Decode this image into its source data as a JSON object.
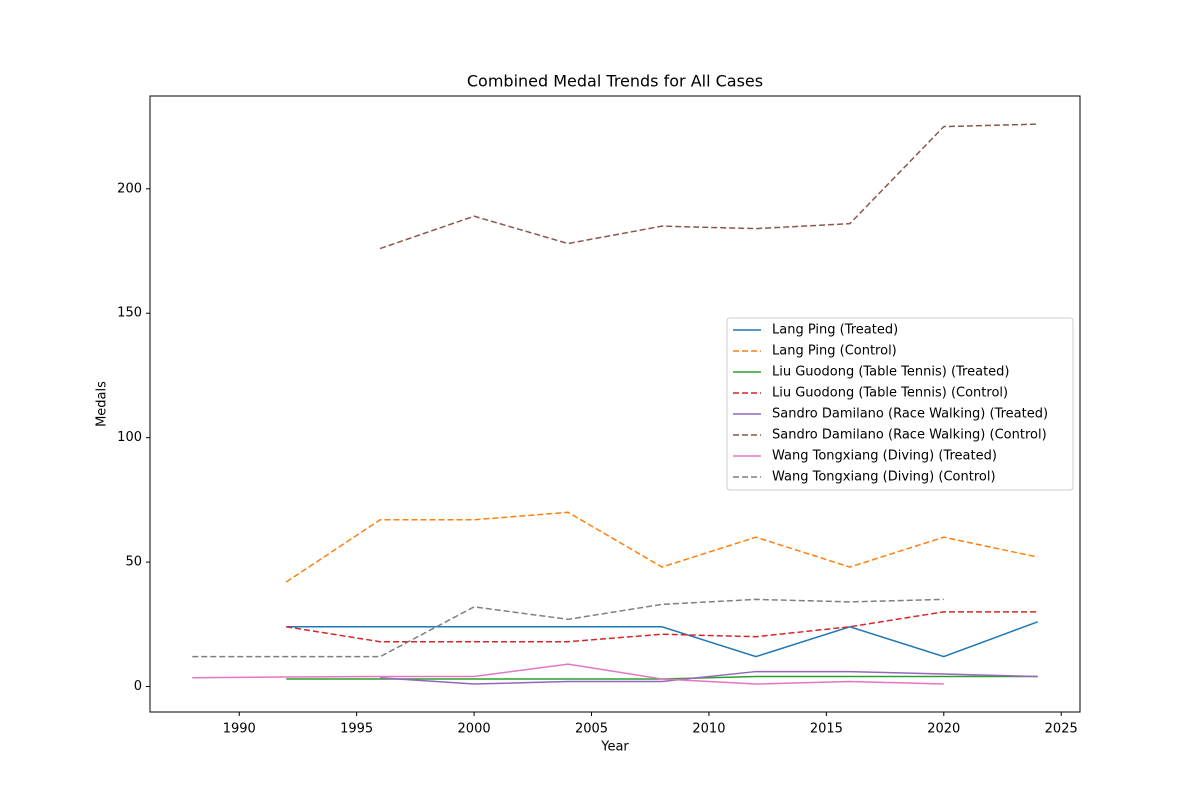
{
  "chart_data": {
    "type": "line",
    "title": "Combined Medal Trends for All Cases",
    "x_label": "Year",
    "y_label": "Medals",
    "x": [
      1988,
      1992,
      1996,
      2000,
      2004,
      2008,
      2012,
      2016,
      2020,
      2024
    ],
    "xlim": [
      1986.2,
      2025.8
    ],
    "xticks": [
      1990,
      1995,
      2000,
      2005,
      2010,
      2015,
      2020,
      2025
    ],
    "ylim": [
      -10.25,
      237.3
    ],
    "yticks": [
      0,
      50,
      100,
      150,
      200
    ],
    "grid": false,
    "legend": "center right",
    "series": [
      {
        "name": "Lang Ping (Treated)",
        "color": "#1f77b4",
        "linestyle": "solid",
        "values": [
          null,
          24,
          24,
          24,
          24,
          24,
          12,
          24,
          12,
          26
        ]
      },
      {
        "name": "Lang Ping (Control)",
        "color": "#ff7f0e",
        "linestyle": "dashed",
        "values": [
          null,
          42,
          67,
          67,
          70,
          48,
          60,
          48,
          60,
          52
        ]
      },
      {
        "name": "Liu Guodong (Table Tennis) (Treated)",
        "color": "#2ca02c",
        "linestyle": "solid",
        "values": [
          null,
          3,
          3,
          3,
          3,
          3,
          4,
          4,
          4,
          4
        ]
      },
      {
        "name": "Liu Guodong (Table Tennis) (Control)",
        "color": "#d62728",
        "linestyle": "dashed",
        "values": [
          null,
          24,
          18,
          18,
          18,
          21,
          20,
          24,
          30,
          30
        ]
      },
      {
        "name": "Sandro Damilano (Race Walking) (Treated)",
        "color": "#9467bd",
        "linestyle": "solid",
        "values": [
          null,
          null,
          3.5,
          1,
          2,
          2,
          6,
          6,
          5,
          4
        ]
      },
      {
        "name": "Sandro Damilano (Race Walking) (Control)",
        "color": "#8c564b",
        "linestyle": "dashed",
        "values": [
          null,
          null,
          176,
          189,
          178,
          185,
          184,
          186,
          225,
          226
        ]
      },
      {
        "name": "Wang Tongxiang (Diving) (Treated)",
        "color": "#e377c2",
        "linestyle": "solid",
        "values": [
          3.5,
          3.8,
          4,
          4,
          9,
          3,
          1,
          2,
          1,
          null
        ]
      },
      {
        "name": "Wang Tongxiang (Diving) (Control)",
        "color": "#7f7f7f",
        "linestyle": "dashed",
        "values": [
          12,
          12,
          12,
          32,
          27,
          33,
          35,
          34,
          35,
          null
        ]
      }
    ]
  }
}
